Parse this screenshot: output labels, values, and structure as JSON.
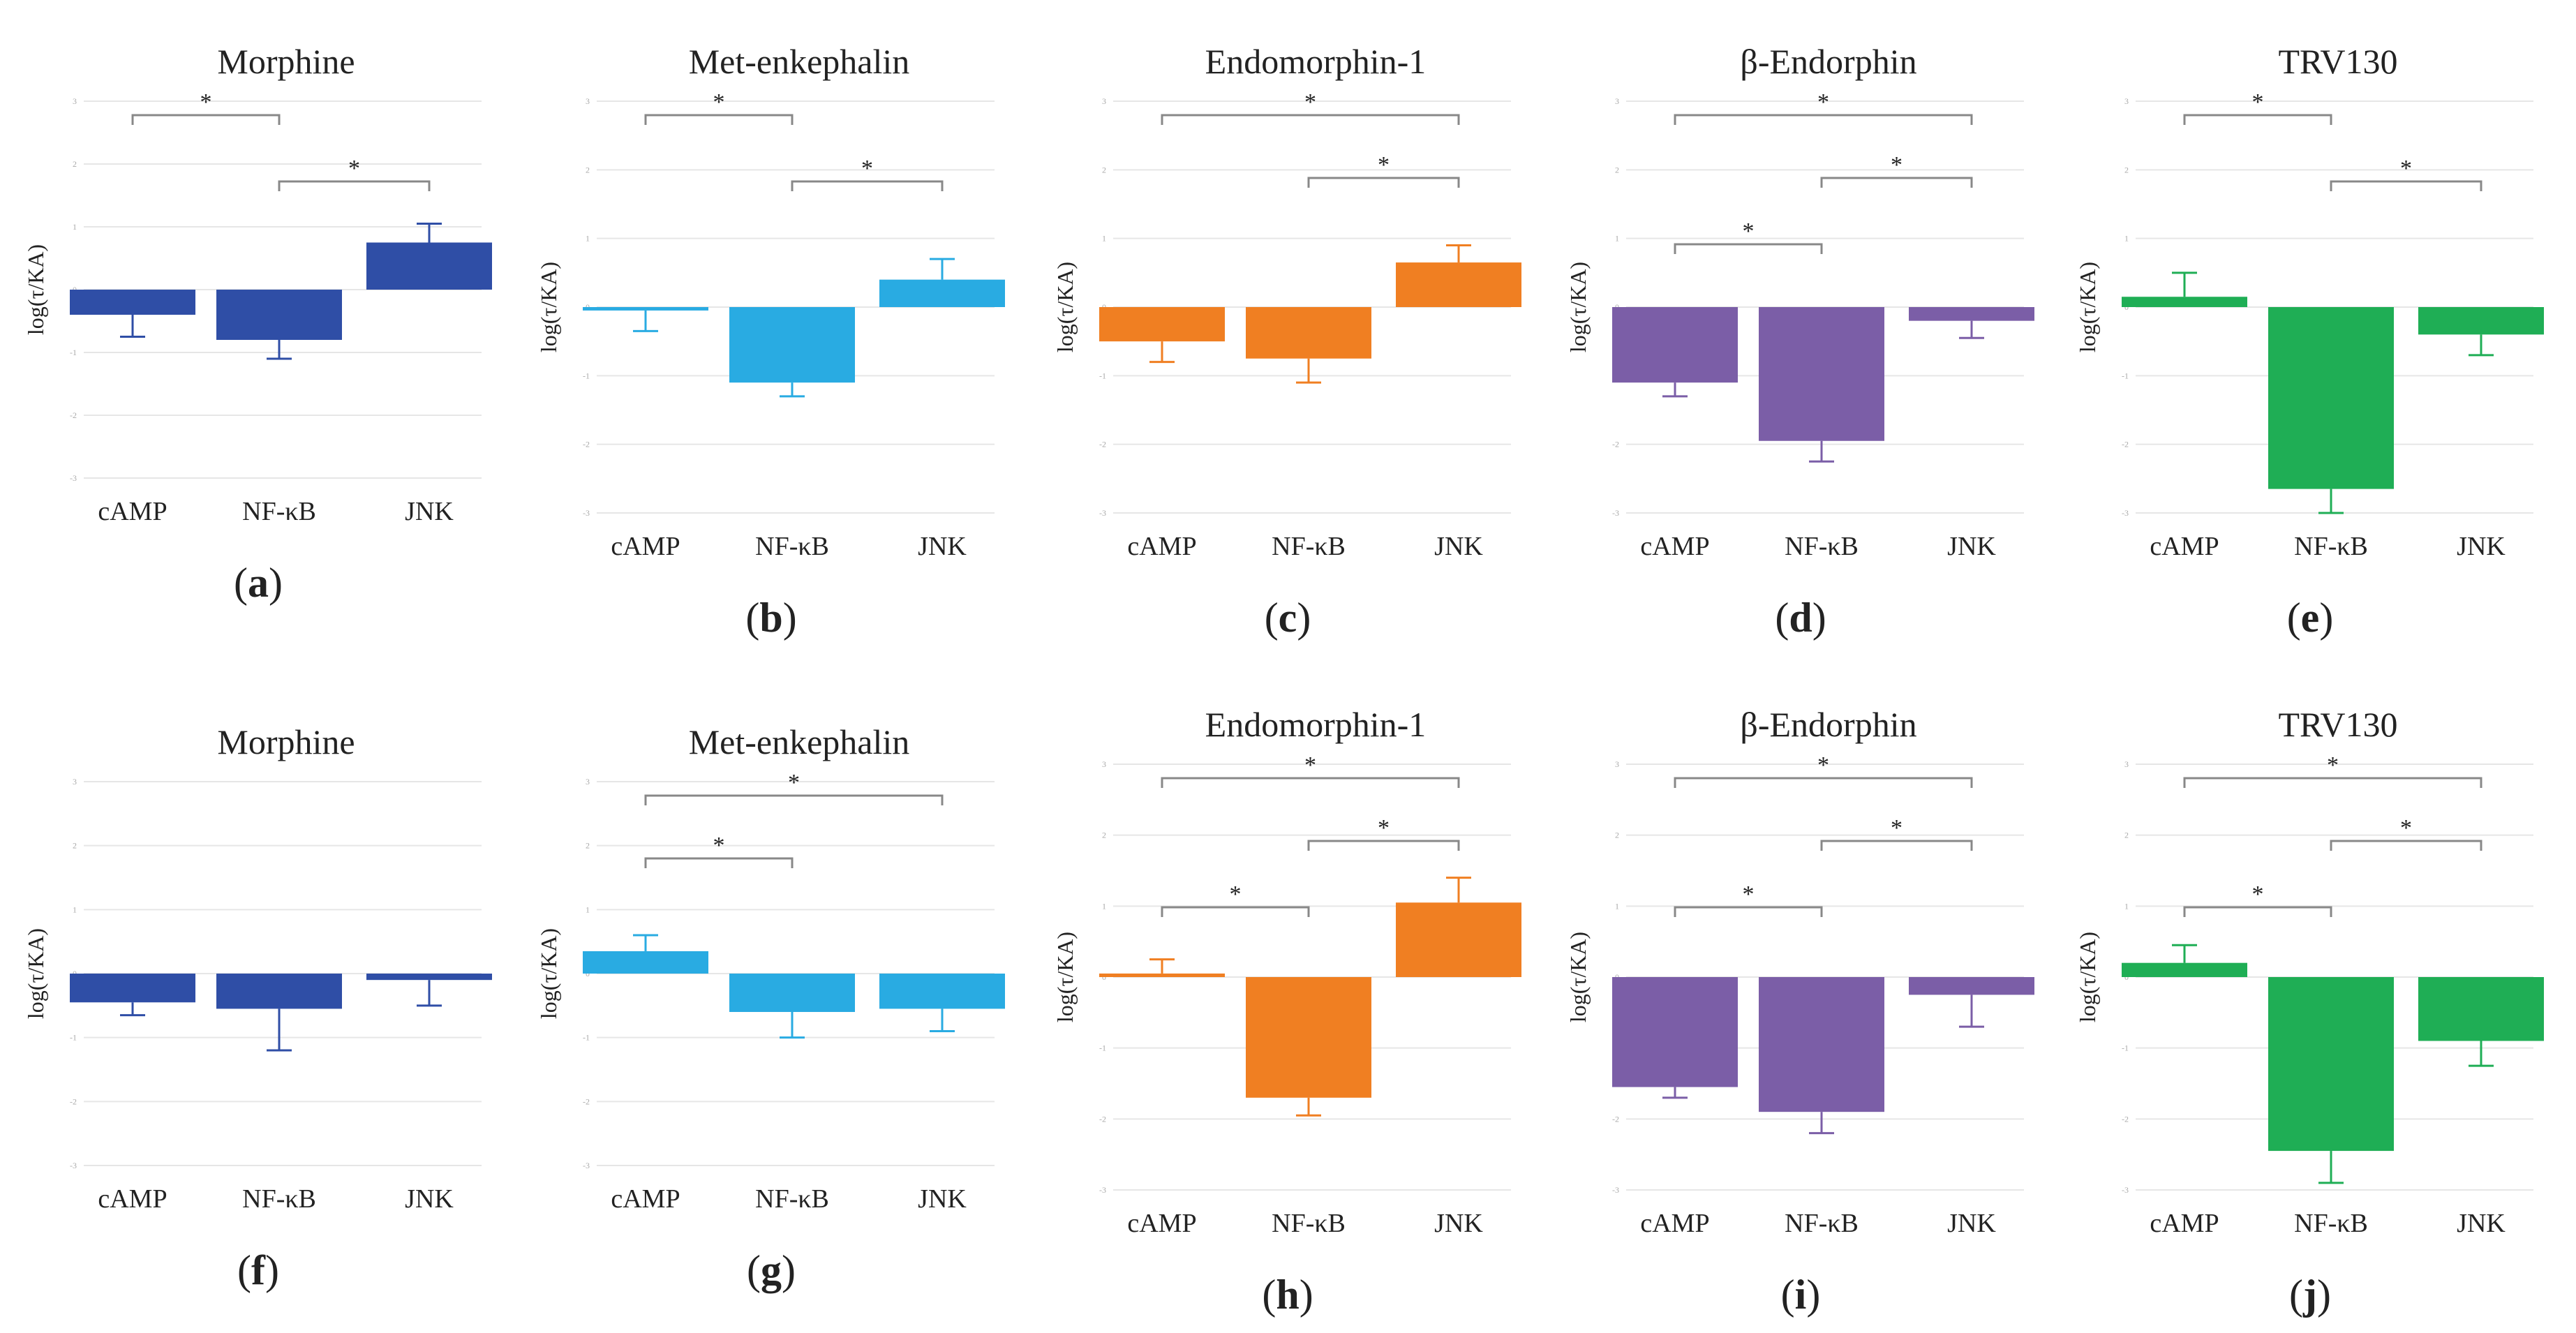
{
  "figure": {
    "colors": {
      "morphine": "#2f4ea6",
      "met_enkephalin": "#29abe2",
      "endomorphin_1": "#f07f22",
      "beta_endorphin": "#7b5ea7",
      "trv130": "#1fae55",
      "grid": "#e6e6e6",
      "bracket": "#888888",
      "text": "#222222"
    }
  },
  "chart_data": [
    {
      "type": "bar",
      "panel_label": "(a)",
      "title": "Morphine",
      "ylabel": "log(τ/KA)",
      "categories": [
        "cAMP",
        "NF-κB",
        "JNK"
      ],
      "values": [
        -0.4,
        -0.8,
        0.75
      ],
      "errors": [
        0.35,
        0.3,
        0.3
      ],
      "ylim": [
        -3,
        3
      ],
      "yticks": [
        "3",
        "2",
        "1",
        "0",
        "-1",
        "-2",
        "-3"
      ],
      "color_key": "morphine",
      "significance": [
        {
          "from": 0,
          "to": 1,
          "label": "*"
        },
        {
          "from": 1,
          "to": 2,
          "label": "*"
        }
      ]
    },
    {
      "type": "bar",
      "panel_label": "(b)",
      "title": "Met-enkephalin",
      "ylabel": "log(τ/KA)",
      "categories": [
        "cAMP",
        "NF-κB",
        "JNK"
      ],
      "values": [
        -0.05,
        -1.1,
        0.4
      ],
      "errors": [
        0.3,
        0.2,
        0.3
      ],
      "ylim": [
        -3,
        3
      ],
      "yticks": [
        "3",
        "2",
        "1",
        "0",
        "-1",
        "-2",
        "-3"
      ],
      "color_key": "met_enkephalin",
      "significance": [
        {
          "from": 0,
          "to": 1,
          "label": "*"
        },
        {
          "from": 1,
          "to": 2,
          "label": "*"
        }
      ]
    },
    {
      "type": "bar",
      "panel_label": "(c)",
      "title": "Endomorphin-1",
      "ylabel": "log(τ/KA)",
      "categories": [
        "cAMP",
        "NF-κB",
        "JNK"
      ],
      "values": [
        -0.5,
        -0.75,
        0.65
      ],
      "errors": [
        0.3,
        0.35,
        0.25
      ],
      "ylim": [
        -3,
        3
      ],
      "yticks": [
        "3",
        "2",
        "1",
        "0",
        "-1",
        "-2",
        "-3"
      ],
      "color_key": "endomorphin_1",
      "significance": [
        {
          "from": 0,
          "to": 2,
          "label": "*"
        },
        {
          "from": 1,
          "to": 2,
          "label": "*"
        }
      ]
    },
    {
      "type": "bar",
      "panel_label": "(d)",
      "title": "β-Endorphin",
      "ylabel": "log(τ/KA)",
      "categories": [
        "cAMP",
        "NF-κB",
        "JNK"
      ],
      "values": [
        -1.1,
        -1.95,
        -0.2
      ],
      "errors": [
        0.2,
        0.3,
        0.25
      ],
      "ylim": [
        -3,
        3
      ],
      "yticks": [
        "3",
        "2",
        "1",
        "0",
        "-1",
        "-2",
        "-3"
      ],
      "color_key": "beta_endorphin",
      "significance": [
        {
          "from": 0,
          "to": 2,
          "label": "*"
        },
        {
          "from": 1,
          "to": 2,
          "label": "*"
        },
        {
          "from": 0,
          "to": 1,
          "label": "*"
        }
      ]
    },
    {
      "type": "bar",
      "panel_label": "(e)",
      "title": "TRV130",
      "ylabel": "log(τ/KA)",
      "categories": [
        "cAMP",
        "NF-κB",
        "JNK"
      ],
      "values": [
        0.15,
        -2.65,
        -0.4
      ],
      "errors": [
        0.35,
        0.35,
        0.3
      ],
      "ylim": [
        -3,
        3
      ],
      "yticks": [
        "3",
        "2",
        "1",
        "0",
        "-1",
        "-2",
        "-3"
      ],
      "color_key": "trv130",
      "significance": [
        {
          "from": 0,
          "to": 1,
          "label": "*"
        },
        {
          "from": 1,
          "to": 2,
          "label": "*"
        }
      ]
    },
    {
      "type": "bar",
      "panel_label": "(f)",
      "title": "Morphine",
      "ylabel": "log(τ/KA)",
      "categories": [
        "cAMP",
        "NF-κB",
        "JNK"
      ],
      "values": [
        -0.45,
        -0.55,
        -0.1
      ],
      "errors": [
        0.2,
        0.65,
        0.4
      ],
      "ylim": [
        -3,
        3
      ],
      "yticks": [
        "3",
        "2",
        "1",
        "0",
        "-1",
        "-2",
        "-3"
      ],
      "color_key": "morphine",
      "significance": []
    },
    {
      "type": "bar",
      "panel_label": "(g)",
      "title": "Met-enkephalin",
      "ylabel": "log(τ/KA)",
      "categories": [
        "cAMP",
        "NF-κB",
        "JNK"
      ],
      "values": [
        0.35,
        -0.6,
        -0.55
      ],
      "errors": [
        0.25,
        0.4,
        0.35
      ],
      "ylim": [
        -3,
        3
      ],
      "yticks": [
        "3",
        "2",
        "1",
        "0",
        "-1",
        "-2",
        "-3"
      ],
      "color_key": "met_enkephalin",
      "significance": [
        {
          "from": 0,
          "to": 2,
          "label": "*"
        },
        {
          "from": 0,
          "to": 1,
          "label": "*"
        }
      ]
    },
    {
      "type": "bar",
      "panel_label": "(h)",
      "title": "Endomorphin-1",
      "ylabel": "log(τ/KA)",
      "categories": [
        "cAMP",
        "NF-κB",
        "JNK"
      ],
      "values": [
        0.05,
        -1.7,
        1.05
      ],
      "errors": [
        0.2,
        0.25,
        0.35
      ],
      "ylim": [
        -3,
        3
      ],
      "yticks": [
        "3",
        "2",
        "1",
        "0",
        "-1",
        "-2",
        "-3"
      ],
      "color_key": "endomorphin_1",
      "significance": [
        {
          "from": 0,
          "to": 2,
          "label": "*"
        },
        {
          "from": 1,
          "to": 2,
          "label": "*"
        },
        {
          "from": 0,
          "to": 1,
          "label": "*"
        }
      ]
    },
    {
      "type": "bar",
      "panel_label": "(i)",
      "title": "β-Endorphin",
      "ylabel": "log(τ/KA)",
      "categories": [
        "cAMP",
        "NF-κB",
        "JNK"
      ],
      "values": [
        -1.55,
        -1.9,
        -0.25
      ],
      "errors": [
        0.15,
        0.3,
        0.45
      ],
      "ylim": [
        -3,
        3
      ],
      "yticks": [
        "3",
        "2",
        "1",
        "0",
        "-1",
        "-2",
        "-3"
      ],
      "color_key": "beta_endorphin",
      "significance": [
        {
          "from": 0,
          "to": 2,
          "label": "*"
        },
        {
          "from": 1,
          "to": 2,
          "label": "*"
        },
        {
          "from": 0,
          "to": 1,
          "label": "*"
        }
      ]
    },
    {
      "type": "bar",
      "panel_label": "(j)",
      "title": "TRV130",
      "ylabel": "log(τ/KA)",
      "categories": [
        "cAMP",
        "NF-κB",
        "JNK"
      ],
      "values": [
        0.2,
        -2.45,
        -0.9
      ],
      "errors": [
        0.25,
        0.45,
        0.35
      ],
      "ylim": [
        -3,
        3
      ],
      "yticks": [
        "3",
        "2",
        "1",
        "0",
        "-1",
        "-2",
        "-3"
      ],
      "color_key": "trv130",
      "significance": [
        {
          "from": 0,
          "to": 2,
          "label": "*"
        },
        {
          "from": 1,
          "to": 2,
          "label": "*"
        },
        {
          "from": 0,
          "to": 1,
          "label": "*"
        }
      ]
    }
  ]
}
